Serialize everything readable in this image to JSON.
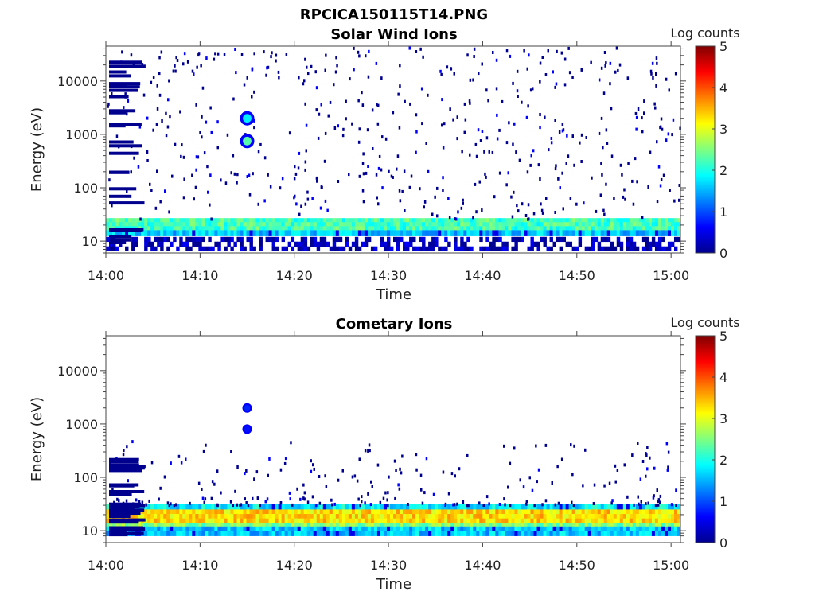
{
  "figure_title": "RPCICA150115T14.PNG",
  "chart_data": [
    {
      "type": "heatmap",
      "title": "Solar Wind Ions",
      "xlabel": "Time",
      "ylabel": "Energy (eV)",
      "x_tick_labels": [
        "14:00",
        "14:10",
        "14:20",
        "14:30",
        "14:40",
        "14:50",
        "15:00"
      ],
      "x_range": [
        "14:00",
        "15:01"
      ],
      "y_scale": "log",
      "y_tick_labels": [
        "10",
        "100",
        "1000",
        "10000"
      ],
      "y_range": [
        6,
        45000
      ],
      "colorbar": {
        "label": "Log counts",
        "ticks": [
          "0",
          "1",
          "2",
          "3",
          "4",
          "5"
        ],
        "range": [
          0,
          5
        ]
      },
      "features": [
        {
          "description": "band",
          "energy_range": [
            16,
            27
          ],
          "log_counts": 2.2
        },
        {
          "description": "band",
          "energy_range": [
            12.5,
            16
          ],
          "log_counts": 1.6
        },
        {
          "description": "band",
          "energy_range": [
            6.5,
            12
          ],
          "log_counts": 0.2
        },
        {
          "description": "spot",
          "time": "14:15",
          "energy": 2000,
          "log_counts": 1.5
        },
        {
          "description": "spot",
          "time": "14:15",
          "energy": 750,
          "log_counts": 2.0
        }
      ]
    },
    {
      "type": "heatmap",
      "title": "Cometary Ions",
      "xlabel": "Time",
      "ylabel": "Energy (eV)",
      "x_tick_labels": [
        "14:00",
        "14:10",
        "14:20",
        "14:30",
        "14:40",
        "14:50",
        "15:00"
      ],
      "x_range": [
        "14:00",
        "15:01"
      ],
      "y_scale": "log",
      "y_tick_labels": [
        "10",
        "100",
        "1000",
        "10000"
      ],
      "y_range": [
        6,
        45000
      ],
      "colorbar": {
        "label": "Log counts",
        "ticks": [
          "0",
          "1",
          "2",
          "3",
          "4",
          "5"
        ],
        "range": [
          0,
          5
        ]
      },
      "features": [
        {
          "description": "band",
          "energy_range": [
            25,
            32
          ],
          "log_counts": 1.8
        },
        {
          "description": "band",
          "energy_range": [
            14,
            25
          ],
          "log_counts": 3.3
        },
        {
          "description": "band",
          "energy_range": [
            12,
            14
          ],
          "log_counts": 2.5
        },
        {
          "description": "band",
          "energy_range": [
            8,
            12
          ],
          "log_counts": 1.6
        },
        {
          "description": "spot",
          "time": "14:15",
          "energy": 2000,
          "log_counts": 0.5
        },
        {
          "description": "spot",
          "time": "14:15",
          "energy": 800,
          "log_counts": 0.4
        }
      ]
    }
  ]
}
